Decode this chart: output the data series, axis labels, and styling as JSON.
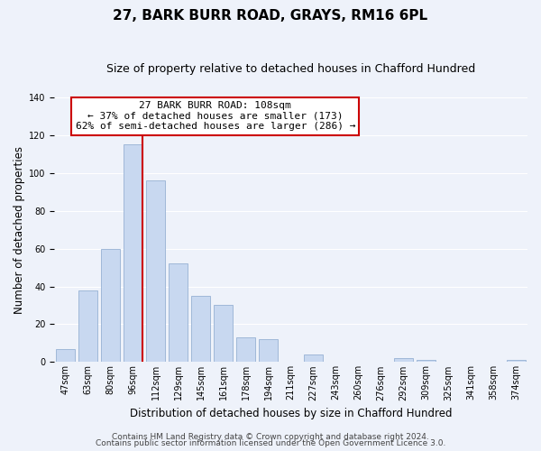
{
  "title": "27, BARK BURR ROAD, GRAYS, RM16 6PL",
  "subtitle": "Size of property relative to detached houses in Chafford Hundred",
  "xlabel": "Distribution of detached houses by size in Chafford Hundred",
  "ylabel": "Number of detached properties",
  "bar_labels": [
    "47sqm",
    "63sqm",
    "80sqm",
    "96sqm",
    "112sqm",
    "129sqm",
    "145sqm",
    "161sqm",
    "178sqm",
    "194sqm",
    "211sqm",
    "227sqm",
    "243sqm",
    "260sqm",
    "276sqm",
    "292sqm",
    "309sqm",
    "325sqm",
    "341sqm",
    "358sqm",
    "374sqm"
  ],
  "bar_values": [
    7,
    38,
    60,
    115,
    96,
    52,
    35,
    30,
    13,
    12,
    0,
    4,
    0,
    0,
    0,
    2,
    1,
    0,
    0,
    0,
    1
  ],
  "bar_color": "#c8d8f0",
  "bar_edge_color": "#a0b8d8",
  "highlight_index": 3,
  "highlight_line_color": "#cc0000",
  "ylim": [
    0,
    140
  ],
  "annotation_line1": "27 BARK BURR ROAD: 108sqm",
  "annotation_line2": "← 37% of detached houses are smaller (173)",
  "annotation_line3": "62% of semi-detached houses are larger (286) →",
  "annotation_box_facecolor": "#ffffff",
  "annotation_box_edgecolor": "#cc0000",
  "footer_line1": "Contains HM Land Registry data © Crown copyright and database right 2024.",
  "footer_line2": "Contains public sector information licensed under the Open Government Licence 3.0.",
  "background_color": "#eef2fa",
  "plot_background_color": "#eef2fa",
  "title_fontsize": 11,
  "subtitle_fontsize": 9,
  "axis_label_fontsize": 8.5,
  "tick_fontsize": 7,
  "annotation_fontsize": 8,
  "footer_fontsize": 6.5
}
